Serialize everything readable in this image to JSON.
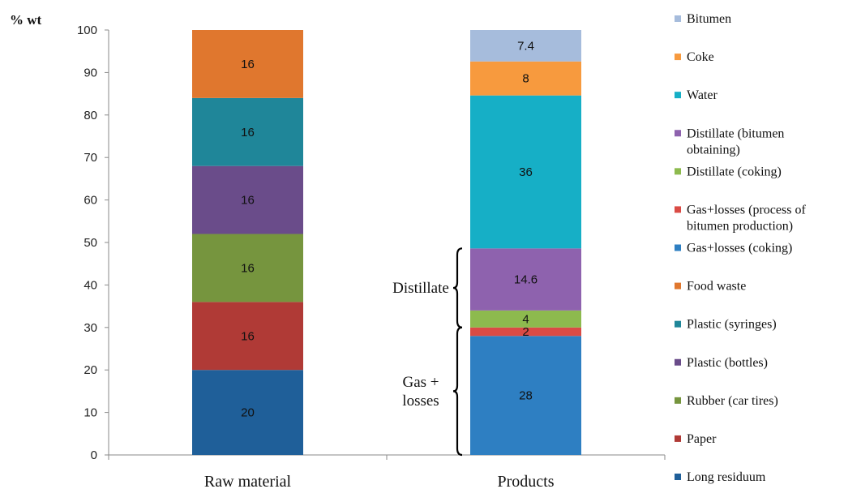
{
  "chart_data": {
    "type": "bar",
    "stacked": true,
    "ylabel": "% wt",
    "ylim": [
      0,
      100
    ],
    "yticks": [
      0,
      10,
      20,
      30,
      40,
      50,
      60,
      70,
      80,
      90,
      100
    ],
    "grid": false,
    "legend_position": "right",
    "categories": [
      "Raw material",
      "Products"
    ],
    "series": [
      {
        "name": "Long residuum",
        "color": "#1F5F99",
        "values": [
          20,
          0
        ]
      },
      {
        "name": "Paper",
        "color": "#B03A36",
        "values": [
          16,
          0
        ]
      },
      {
        "name": "Rubber (car tires)",
        "color": "#76953E",
        "values": [
          16,
          0
        ]
      },
      {
        "name": "Plastic (bottles)",
        "color": "#6A4C8A",
        "values": [
          16,
          0
        ]
      },
      {
        "name": "Plastic (syringes)",
        "color": "#1F8699",
        "values": [
          16,
          0
        ]
      },
      {
        "name": "Food waste",
        "color": "#E0772E",
        "values": [
          16,
          0
        ]
      },
      {
        "name": "Gas+losses (coking)",
        "color": "#2E7FC2",
        "values": [
          0,
          28
        ]
      },
      {
        "name": "Gas+losses (process of bitumen production)",
        "color": "#DA4B45",
        "values": [
          0,
          2
        ]
      },
      {
        "name": "Distillate (coking)",
        "color": "#8DBA4E",
        "values": [
          0,
          4
        ]
      },
      {
        "name": "Distillate (bitumen obtaining)",
        "color": "#8E62AE",
        "values": [
          0,
          14.6
        ]
      },
      {
        "name": "Water",
        "color": "#16AFC6",
        "values": [
          0,
          36
        ]
      },
      {
        "name": "Coke",
        "color": "#F79A3E",
        "values": [
          0,
          8
        ]
      },
      {
        "name": "Bitumen",
        "color": "#A6BCDC",
        "values": [
          0,
          7.4
        ]
      }
    ],
    "legend": [
      {
        "lines": [
          "Bitumen"
        ],
        "color": "#A6BCDC"
      },
      {
        "lines": [
          "Coke"
        ],
        "color": "#F79A3E"
      },
      {
        "lines": [
          "Water"
        ],
        "color": "#16AFC6"
      },
      {
        "lines": [
          "Distillate (bitumen",
          "obtaining)"
        ],
        "color": "#8E62AE"
      },
      {
        "lines": [
          "Distillate (coking)"
        ],
        "color": "#8DBA4E"
      },
      {
        "lines": [
          "Gas+losses (process of",
          "bitumen production)"
        ],
        "color": "#DA4B45"
      },
      {
        "lines": [
          "Gas+losses (coking)"
        ],
        "color": "#2E7FC2"
      },
      {
        "lines": [
          "Food waste"
        ],
        "color": "#E0772E"
      },
      {
        "lines": [
          "Plastic (syringes)"
        ],
        "color": "#1F8699"
      },
      {
        "lines": [
          "Plastic (bottles)"
        ],
        "color": "#6A4C8A"
      },
      {
        "lines": [
          "Rubber (car tires)"
        ],
        "color": "#76953E"
      },
      {
        "lines": [
          "Paper"
        ],
        "color": "#B03A36"
      },
      {
        "lines": [
          "Long residuum"
        ],
        "color": "#1F5F99"
      }
    ],
    "annotations": [
      {
        "lines": [
          "Distillate"
        ],
        "y_from": 30,
        "y_to": 48.6
      },
      {
        "lines": [
          "Gas +",
          "losses"
        ],
        "y_from": 0,
        "y_to": 30
      }
    ]
  }
}
